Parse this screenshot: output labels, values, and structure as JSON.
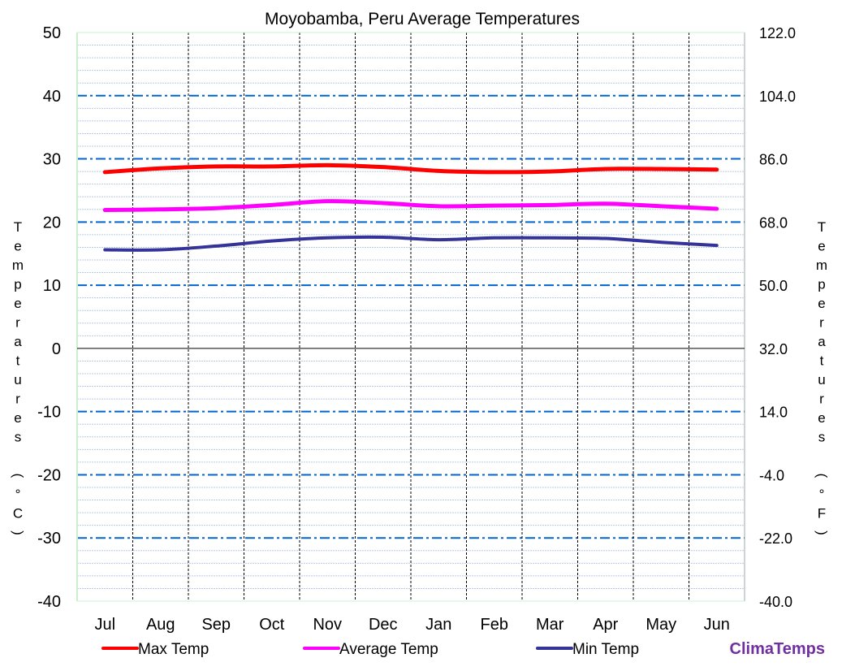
{
  "chart_data": {
    "type": "line",
    "title": "Moyobamba, Peru Average Temperatures",
    "ylabel_left": "Temperatures (°C)",
    "ylabel_right": "Temperatures (°F)",
    "ylim": [
      -40,
      50
    ],
    "ylim_right": [
      -40.0,
      122.0
    ],
    "yticks_left": [
      "50",
      "40",
      "30",
      "20",
      "10",
      "0",
      "-10",
      "-20",
      "-30",
      "-40"
    ],
    "yticks_right": [
      "122.0",
      "104.0",
      "86.0",
      "68.0",
      "50.0",
      "32.0",
      "14.0",
      "-4.0",
      "-22.0",
      "-40.0"
    ],
    "categories": [
      "Jul",
      "Aug",
      "Sep",
      "Oct",
      "Nov",
      "Dec",
      "Jan",
      "Feb",
      "Mar",
      "Apr",
      "May",
      "Jun"
    ],
    "grid": true,
    "legend_placement": "bottom",
    "series": [
      {
        "name": "Max Temp",
        "color": "#ff0000",
        "values": [
          27.9,
          28.5,
          28.8,
          28.8,
          29.0,
          28.7,
          28.1,
          27.9,
          28.0,
          28.4,
          28.4,
          28.3
        ]
      },
      {
        "name": "Average Temp",
        "color": "#ff00ff",
        "values": [
          21.9,
          22.0,
          22.2,
          22.7,
          23.3,
          23.0,
          22.5,
          22.6,
          22.7,
          22.9,
          22.5,
          22.1
        ]
      },
      {
        "name": "Min Temp",
        "color": "#333399",
        "values": [
          15.6,
          15.6,
          16.2,
          17.0,
          17.5,
          17.6,
          17.2,
          17.5,
          17.5,
          17.4,
          16.8,
          16.3
        ]
      }
    ]
  },
  "brand": {
    "name": "ClimaTemps",
    "color": "#7030a0"
  }
}
